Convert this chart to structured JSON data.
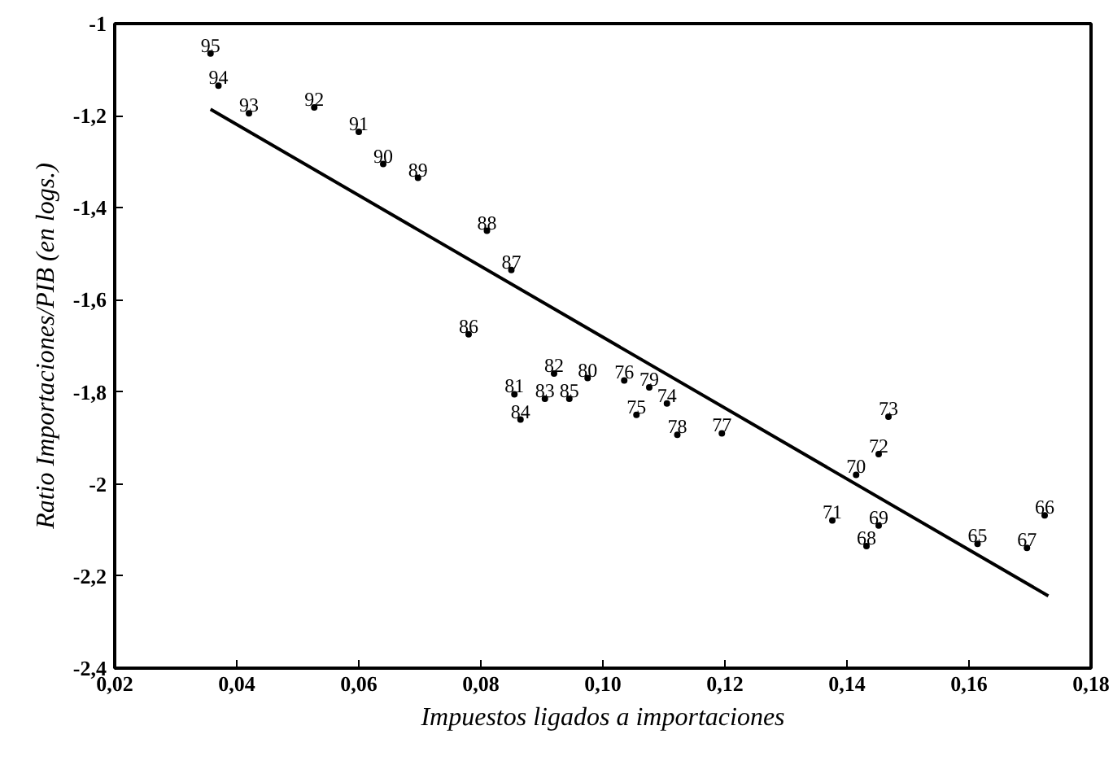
{
  "chart_data": {
    "type": "scatter",
    "xlabel": "Impuestos ligados a importaciones",
    "ylabel": "Ratio Importaciones/PIB (en logs.)",
    "xlim": [
      0.02,
      0.18
    ],
    "ylim": [
      -2.4,
      -1
    ],
    "xticks": [
      {
        "value": 0.02,
        "label": "0,02"
      },
      {
        "value": 0.04,
        "label": "0,04"
      },
      {
        "value": 0.06,
        "label": "0,06"
      },
      {
        "value": 0.08,
        "label": "0,08"
      },
      {
        "value": 0.1,
        "label": "0,10"
      },
      {
        "value": 0.12,
        "label": "0,12"
      },
      {
        "value": 0.14,
        "label": "0,14"
      },
      {
        "value": 0.16,
        "label": "0,16"
      },
      {
        "value": 0.18,
        "label": "0,18"
      }
    ],
    "yticks": [
      {
        "value": -2.4,
        "label": "-2,4"
      },
      {
        "value": -2.2,
        "label": "-2,2"
      },
      {
        "value": -2,
        "label": "-2"
      },
      {
        "value": -1.8,
        "label": "-1,8"
      },
      {
        "value": -1.6,
        "label": "-1,6"
      },
      {
        "value": -1.4,
        "label": "-1,4"
      },
      {
        "value": -1.2,
        "label": "-1,2"
      },
      {
        "value": -1,
        "label": "-1"
      }
    ],
    "grid": false,
    "series": [
      {
        "color": "#000000",
        "marker": "circle",
        "x": [
          0.0357,
          0.037,
          0.042,
          0.0527,
          0.06,
          0.064,
          0.0697,
          0.081,
          0.085,
          0.078,
          0.0855,
          0.0865,
          0.092,
          0.0905,
          0.0945,
          0.0975,
          0.1035,
          0.1076,
          0.1055,
          0.1105,
          0.1122,
          0.1195,
          0.1468,
          0.1452,
          0.1415,
          0.1452,
          0.1376,
          0.1432,
          0.1614,
          0.1695,
          0.1724
        ],
        "values": [
          -1.065,
          -1.135,
          -1.195,
          -1.182,
          -1.235,
          -1.305,
          -1.335,
          -1.45,
          -1.535,
          -1.675,
          -1.805,
          -1.86,
          -1.76,
          -1.815,
          -1.815,
          -1.77,
          -1.775,
          -1.79,
          -1.85,
          -1.825,
          -1.893,
          -1.89,
          -1.854,
          -1.935,
          -1.98,
          -2.09,
          -2.079,
          -2.135,
          -2.13,
          -2.139,
          -2.068
        ]
      },
      {
        "type": "line",
        "color": "#000000",
        "line_style": "solid",
        "x": [
          0.0357,
          0.173
        ],
        "values": [
          -1.186,
          -2.243
        ]
      }
    ],
    "annotations": [
      {
        "text": "95",
        "x": 0.0357,
        "y": -1.065
      },
      {
        "text": "94",
        "x": 0.037,
        "y": -1.135
      },
      {
        "text": "93",
        "x": 0.042,
        "y": -1.195
      },
      {
        "text": "92",
        "x": 0.0527,
        "y": -1.182
      },
      {
        "text": "91",
        "x": 0.06,
        "y": -1.235
      },
      {
        "text": "90",
        "x": 0.064,
        "y": -1.305
      },
      {
        "text": "89",
        "x": 0.0697,
        "y": -1.335
      },
      {
        "text": "88",
        "x": 0.081,
        "y": -1.45
      },
      {
        "text": "87",
        "x": 0.085,
        "y": -1.535
      },
      {
        "text": "86",
        "x": 0.078,
        "y": -1.675
      },
      {
        "text": "81",
        "x": 0.0855,
        "y": -1.805
      },
      {
        "text": "84",
        "x": 0.0865,
        "y": -1.86
      },
      {
        "text": "82",
        "x": 0.092,
        "y": -1.76
      },
      {
        "text": "83",
        "x": 0.0905,
        "y": -1.815
      },
      {
        "text": "85",
        "x": 0.0945,
        "y": -1.815
      },
      {
        "text": "80",
        "x": 0.0975,
        "y": -1.77
      },
      {
        "text": "76",
        "x": 0.1035,
        "y": -1.775
      },
      {
        "text": "79",
        "x": 0.1076,
        "y": -1.79
      },
      {
        "text": "75",
        "x": 0.1055,
        "y": -1.85
      },
      {
        "text": "74",
        "x": 0.1105,
        "y": -1.825
      },
      {
        "text": "78",
        "x": 0.1122,
        "y": -1.893
      },
      {
        "text": "77",
        "x": 0.1195,
        "y": -1.89
      },
      {
        "text": "73",
        "x": 0.1468,
        "y": -1.854
      },
      {
        "text": "72",
        "x": 0.1452,
        "y": -1.935
      },
      {
        "text": "70",
        "x": 0.1415,
        "y": -1.98
      },
      {
        "text": "69",
        "x": 0.1452,
        "y": -2.09
      },
      {
        "text": "71",
        "x": 0.1376,
        "y": -2.079
      },
      {
        "text": "68",
        "x": 0.1432,
        "y": -2.135
      },
      {
        "text": "65",
        "x": 0.1614,
        "y": -2.13
      },
      {
        "text": "67",
        "x": 0.1695,
        "y": -2.139
      },
      {
        "text": "66",
        "x": 0.1724,
        "y": -2.068
      }
    ]
  }
}
